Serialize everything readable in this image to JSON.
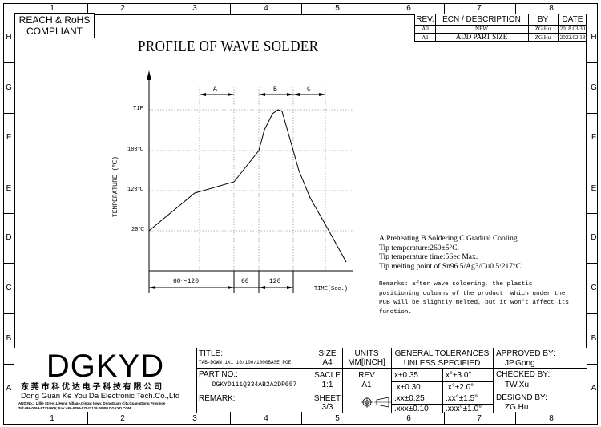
{
  "frame": {
    "columns": [
      "1",
      "2",
      "3",
      "4",
      "5",
      "6",
      "7",
      "8"
    ],
    "rows": [
      "H",
      "G",
      "F",
      "E",
      "D",
      "C",
      "B",
      "A"
    ]
  },
  "compliance": "REACH & RoHS\nCOMPLIANT",
  "revision_table": {
    "headers": [
      "REV.",
      "ECN / DESCRIPTION",
      "BY",
      "DATE"
    ],
    "rows": [
      {
        "rev": "A0",
        "desc": "NEW",
        "by": "ZG.Hu",
        "date": "2018.03.30"
      },
      {
        "rev": "A1",
        "desc": "ADD PART SIZE",
        "by": "ZG.Hu",
        "date": "2022.02.18"
      }
    ]
  },
  "drawing": {
    "title": "PROFILE OF WAVE SOLDER",
    "y_axis_label": "TEMPERATURE (℃)",
    "x_axis_label": "TIME(Sec.)",
    "y_ticks": [
      "T1P",
      "180℃",
      "120℃",
      "20℃"
    ],
    "zones": [
      "A",
      "B",
      "C"
    ],
    "durations": [
      "60～120",
      "60",
      "120"
    ]
  },
  "notes": {
    "lines": [
      "A.Preheating  B.Soldering  C.Gradual Cooling",
      "Tip temperature:260±5°C.",
      "Tip temperature time:5Sec Max.",
      "Tip melting point of Sn96.5/Ag3/Cu0.5:217°C."
    ],
    "remarks": [
      "Remarks: after wave soldering, the plastic",
      "positioning columns of the product  which under the",
      "PCB will be slightly melted, but it won't affect its",
      "function."
    ]
  },
  "title_block": {
    "logo": "DGKYD",
    "company_cn": "东 莞 市 科 优 达 电 子 科 技 有 限 公 司",
    "company_en": "Dong Guan Ke You Da Electronic Tech.Co.,Ltd",
    "address": "ADD:No.1 Lillie Street,LiHeng Village,Qingxi town, DongGuan City,GuangDong Province",
    "contact": "Tel:+86-0769-87334606; Fax:+86-0769-87847129  WWW.DGKYD.COM",
    "title_label": "TITLE:",
    "title_value": "TAB-DOWN 1X1 10/100/1000BASE POE",
    "part_no_label": "PART NO.:",
    "part_no_value": "DGKYD111Q334AB2A2DP057",
    "remark_label": "REMARK:",
    "size_label": "SIZE",
    "size_value": "A4",
    "scale_label": "SACLE",
    "scale_value": "1:1",
    "sheet_label": "SHEET",
    "sheet_value": "3/3",
    "units_label": "UNITS",
    "units_value": "MM[INCH]",
    "rev_label": "REV",
    "rev_value": "A1",
    "tolerance_title": "GENERAL TOLERANCES",
    "tolerance_sub": "UNLESS SPECIFIED",
    "tolerances": [
      [
        "x±0.35",
        "x°±3.0°"
      ],
      [
        ".x±0.30",
        ".x°±2.0°"
      ],
      [
        ".xx±0.25",
        ".xx°±1.5°"
      ],
      [
        ".xxx±0.10",
        ".xxx°±1.0°"
      ]
    ],
    "approved_label": "APPROVED BY:",
    "approved_value": "JP.Gong",
    "checked_label": "CHECKED BY:",
    "checked_value": "TW.Xu",
    "designed_label": "DESIGND BY:",
    "designed_value": "ZG.Hu"
  }
}
